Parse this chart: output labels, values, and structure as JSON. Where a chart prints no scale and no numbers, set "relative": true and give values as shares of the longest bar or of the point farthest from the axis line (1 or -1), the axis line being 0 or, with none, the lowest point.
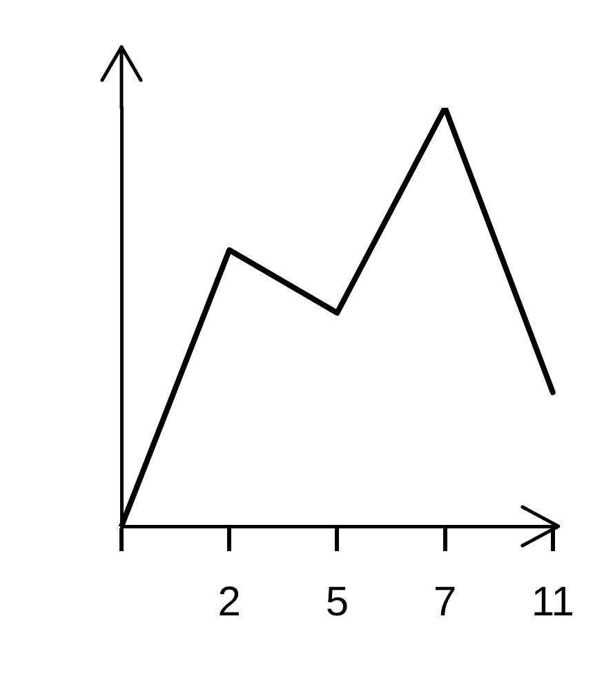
{
  "chart_data": {
    "type": "line",
    "relative": true,
    "categories": [
      null,
      "2",
      "5",
      "7",
      "11"
    ],
    "series": [
      {
        "color": "#000000",
        "values": [
          0,
          0.66,
          0.51,
          1,
          0.32
        ]
      }
    ],
    "grid": false,
    "legend": false,
    "marker": "none",
    "line_style": "solid"
  }
}
